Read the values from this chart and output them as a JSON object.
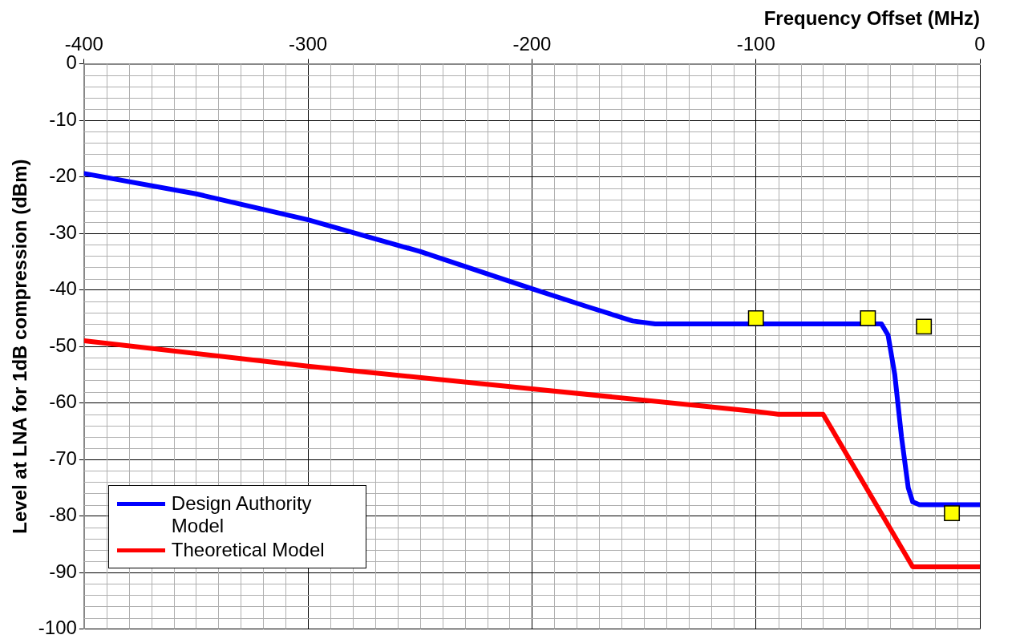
{
  "chart_data": {
    "type": "line",
    "xlabel": "Frequency Offset (MHz)",
    "ylabel": "Level at LNA for 1dB compression (dBm)",
    "xlim": [
      -400,
      0
    ],
    "xticks": [
      -400,
      -300,
      -200,
      -100,
      0
    ],
    "ylim": [
      -100,
      0
    ],
    "yticks": [
      0,
      -10,
      -20,
      -30,
      -40,
      -50,
      -60,
      -70,
      -80,
      -90,
      -100
    ],
    "grid": true,
    "legend": "bottom left",
    "line_style": "solid",
    "series": [
      {
        "name": "Design Authority Model",
        "color": "#0000ff",
        "marker": "none",
        "x": [
          -400,
          -350,
          -300,
          -250,
          -200,
          -175,
          -155,
          -145,
          -44,
          -41,
          -38,
          -35,
          -32,
          -30,
          -27,
          0
        ],
        "values": [
          -19.4,
          -23,
          -27.6,
          -33.2,
          -39.8,
          -43,
          -45.5,
          -46,
          -46,
          -48,
          -55,
          -66,
          -75,
          -77.5,
          -78,
          -78
        ]
      },
      {
        "name": "Theoretical Model",
        "color": "#ff0000",
        "marker": "none",
        "x": [
          -400,
          -300,
          -200,
          -100,
          -90,
          -70,
          -30,
          0
        ],
        "values": [
          -49,
          -53.5,
          -57.5,
          -61.5,
          -62,
          -62,
          -89,
          -89
        ]
      },
      {
        "type": "scatter",
        "color": "#ffff00",
        "marker": "square",
        "x": [
          -100,
          -50,
          -25,
          -12.5
        ],
        "values": [
          -45,
          -45,
          -46.5,
          -79.5
        ]
      }
    ]
  }
}
